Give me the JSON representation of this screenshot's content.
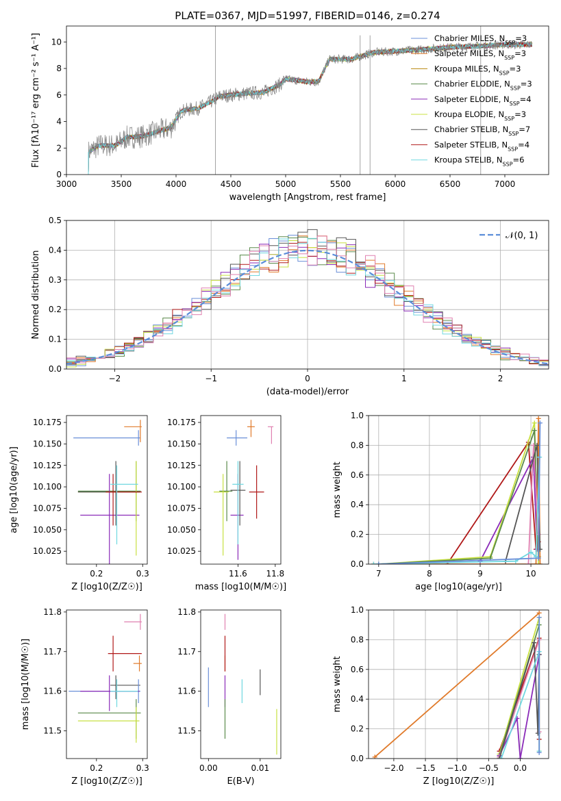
{
  "figure_title": "PLATE=0367, MJD=51997, FIBERID=0146, z=0.274",
  "colors": {
    "chabrier_miles": "#6a8fd8",
    "salpeter_miles": "#e07a2a",
    "kroupa_miles": "#b8860b",
    "chabrier_elodie": "#5a8a4a",
    "salpeter_elodie": "#8a2ab8",
    "kroupa_elodie": "#c8e040",
    "chabrier_stelib": "#555555",
    "salpeter_stelib": "#b01818",
    "kroupa_stelib": "#70d8e0",
    "pink": "#e080b0",
    "normal_curve": "#5b8dd9"
  },
  "chart_data": [
    {
      "id": "spectrum",
      "type": "line",
      "xlabel": "wavelength [Angstrom, rest frame]",
      "ylabel": "Flux [fλ10⁻¹⁷ erg cm⁻² s⁻¹ A⁻¹]",
      "xlim": [
        3000,
        7400
      ],
      "ylim": [
        0,
        11.2
      ],
      "xticks": [
        3000,
        3500,
        4000,
        4500,
        5000,
        5500,
        6000,
        6500,
        7000
      ],
      "yticks": [
        0,
        2,
        4,
        6,
        8,
        10
      ],
      "continuum": [
        [
          3200,
          1.7
        ],
        [
          3300,
          2.2
        ],
        [
          3450,
          2.2
        ],
        [
          3550,
          2.8
        ],
        [
          3700,
          2.9
        ],
        [
          3850,
          3.3
        ],
        [
          3950,
          3.5
        ],
        [
          4050,
          4.8
        ],
        [
          4200,
          5.0
        ],
        [
          4300,
          5.4
        ],
        [
          4400,
          5.9
        ],
        [
          4600,
          6.1
        ],
        [
          4800,
          6.2
        ],
        [
          4950,
          6.8
        ],
        [
          5000,
          7.2
        ],
        [
          5200,
          7.0
        ],
        [
          5300,
          7.0
        ],
        [
          5400,
          8.7
        ],
        [
          5600,
          8.7
        ],
        [
          5800,
          9.2
        ],
        [
          6000,
          9.3
        ],
        [
          6200,
          9.4
        ],
        [
          6500,
          9.6
        ],
        [
          6800,
          9.7
        ],
        [
          7000,
          9.8
        ],
        [
          7200,
          9.8
        ]
      ],
      "legend": [
        {
          "label": "Chabrier MILES, N_SSP=3",
          "color_key": "chabrier_miles"
        },
        {
          "label": "Salpeter MILES, N_SSP=3",
          "color_key": "salpeter_miles"
        },
        {
          "label": "Kroupa MILES, N_SSP=3",
          "color_key": "kroupa_miles"
        },
        {
          "label": "Chabrier ELODIE, N_SSP=3",
          "color_key": "chabrier_elodie"
        },
        {
          "label": "Salpeter ELODIE, N_SSP=4",
          "color_key": "salpeter_elodie"
        },
        {
          "label": "Kroupa ELODIE, N_SSP=3",
          "color_key": "kroupa_elodie"
        },
        {
          "label": "Chabrier STELIB, N_SSP=7",
          "color_key": "chabrier_stelib"
        },
        {
          "label": "Salpeter STELIB, N_SSP=4",
          "color_key": "salpeter_stelib"
        },
        {
          "label": "Kroupa STELIB, N_SSP=6",
          "color_key": "kroupa_stelib"
        }
      ],
      "legend_position": "right"
    },
    {
      "id": "residuals",
      "type": "histogram",
      "xlabel": "(data-model)/error",
      "ylabel": "Normed distribution",
      "xlim": [
        -2.5,
        2.5
      ],
      "ylim": [
        0,
        0.5
      ],
      "xticks": [
        -2,
        -1,
        0,
        1,
        2
      ],
      "yticks": [
        0.0,
        0.1,
        0.2,
        0.3,
        0.4,
        0.5
      ],
      "legend": [
        {
          "label": "𝒩(0, 1)",
          "color_key": "normal_curve"
        }
      ],
      "legend_position": "top-right",
      "grid": true
    },
    {
      "id": "age_vs_Z",
      "type": "errorbar",
      "xlabel": "Z [log10(Z/Z☉)]",
      "ylabel": "age  [log10(age/yr)]",
      "xlim": [
        0.135,
        0.31
      ],
      "ylim": [
        10.01,
        10.183
      ],
      "xticks": [
        0.2,
        0.3
      ],
      "yticks": [
        10.025,
        10.05,
        10.075,
        10.1,
        10.125,
        10.15,
        10.175
      ],
      "points": [
        {
          "c": "chabrier_miles",
          "x": 0.291,
          "y": 10.157,
          "xl": 0.15,
          "xh": 0.295,
          "yl": 10.148,
          "yh": 10.166
        },
        {
          "c": "salpeter_miles",
          "x": 0.295,
          "y": 10.17,
          "xl": 0.26,
          "xh": 0.298,
          "yl": 10.152,
          "yh": 10.178
        },
        {
          "c": "chabrier_elodie",
          "x": 0.286,
          "y": 10.095,
          "xl": 0.16,
          "xh": 0.296,
          "yl": 10.06,
          "yh": 10.13
        },
        {
          "c": "salpeter_elodie",
          "x": 0.228,
          "y": 10.067,
          "xl": 0.165,
          "xh": 0.293,
          "yl": 10.01,
          "yh": 10.115
        },
        {
          "c": "kroupa_elodie",
          "x": 0.286,
          "y": 10.094,
          "xl": 0.16,
          "xh": 0.293,
          "yl": 10.02,
          "yh": 10.13
        },
        {
          "c": "chabrier_stelib",
          "x": 0.242,
          "y": 10.094,
          "xl": 0.16,
          "xh": 0.295,
          "yl": 10.055,
          "yh": 10.13
        },
        {
          "c": "salpeter_stelib",
          "x": 0.236,
          "y": 10.094,
          "xl": 0.22,
          "xh": 0.298,
          "yl": 10.055,
          "yh": 10.115
        },
        {
          "c": "kroupa_stelib",
          "x": 0.244,
          "y": 10.103,
          "xl": 0.23,
          "xh": 0.29,
          "yl": 10.033,
          "yh": 10.125
        }
      ]
    },
    {
      "id": "age_vs_mass",
      "type": "errorbar",
      "xlabel": "mass [log10(M/M☉)]",
      "ylabel": "",
      "xlim": [
        11.4,
        11.83
      ],
      "ylim": [
        10.01,
        10.183
      ],
      "xticks": [
        11.6,
        11.8
      ],
      "yticks": [
        10.025,
        10.05,
        10.075,
        10.1,
        10.125,
        10.15,
        10.175
      ],
      "points": [
        {
          "c": "chabrier_miles",
          "x": 11.59,
          "y": 10.157,
          "xl": 11.54,
          "xh": 11.65,
          "yl": 10.148,
          "yh": 10.166
        },
        {
          "c": "salpeter_miles",
          "x": 11.67,
          "y": 10.17,
          "xl": 11.65,
          "xh": 11.69,
          "yl": 10.158,
          "yh": 10.178
        },
        {
          "c": "pink",
          "x": 11.78,
          "y": 10.17,
          "xl": 11.76,
          "xh": 11.79,
          "yl": 10.15,
          "yh": 10.17
        },
        {
          "c": "chabrier_elodie",
          "x": 11.54,
          "y": 10.095,
          "xl": 11.5,
          "xh": 11.57,
          "yl": 10.06,
          "yh": 10.13
        },
        {
          "c": "salpeter_elodie",
          "x": 11.6,
          "y": 10.067,
          "xl": 11.56,
          "xh": 11.63,
          "yl": 10.015,
          "yh": 10.115
        },
        {
          "c": "kroupa_elodie",
          "x": 11.52,
          "y": 10.094,
          "xl": 11.47,
          "xh": 11.55,
          "yl": 10.02,
          "yh": 10.115
        },
        {
          "c": "chabrier_stelib",
          "x": 11.61,
          "y": 10.096,
          "xl": 11.56,
          "xh": 11.64,
          "yl": 10.055,
          "yh": 10.13
        },
        {
          "c": "salpeter_stelib",
          "x": 11.7,
          "y": 10.094,
          "xl": 11.66,
          "xh": 11.74,
          "yl": 10.063,
          "yh": 10.125
        },
        {
          "c": "kroupa_stelib",
          "x": 11.6,
          "y": 10.103,
          "xl": 11.57,
          "xh": 11.63,
          "yl": 10.033,
          "yh": 10.13
        }
      ]
    },
    {
      "id": "massweight_vs_age",
      "type": "line",
      "xlabel": "age  [log10(age/yr)]",
      "ylabel": "mass weight",
      "xlim": [
        6.8,
        10.35
      ],
      "ylim": [
        0,
        1.0
      ],
      "xticks": [
        7,
        8,
        9,
        10
      ],
      "yticks": [
        0.0,
        0.2,
        0.4,
        0.6,
        0.8,
        1.0
      ],
      "grid": true,
      "series": [
        {
          "c": "salpeter_stelib",
          "x": [
            8.35,
            9.95,
            10.1,
            10.15
          ],
          "y": [
            0.0,
            0.82,
            0.1,
            0.15
          ]
        },
        {
          "c": "salpeter_elodie",
          "x": [
            9.0,
            10.05,
            10.12
          ],
          "y": [
            0.02,
            0.72,
            0.1
          ]
        },
        {
          "c": "kroupa_elodie",
          "x": [
            7.0,
            9.2,
            10.07,
            10.15
          ],
          "y": [
            0.0,
            0.05,
            0.95,
            0.0
          ]
        },
        {
          "c": "chabrier_elodie",
          "x": [
            7.0,
            9.2,
            10.07,
            10.15
          ],
          "y": [
            0.0,
            0.04,
            0.9,
            0.05
          ]
        },
        {
          "c": "salpeter_miles",
          "x": [
            6.9,
            10.1,
            10.15,
            10.18
          ],
          "y": [
            0.0,
            0.0,
            0.98,
            0.0
          ]
        },
        {
          "c": "pink",
          "x": [
            9.95,
            10.05,
            10.15
          ],
          "y": [
            0.0,
            0.8,
            0.2
          ]
        },
        {
          "c": "chabrier_stelib",
          "x": [
            9.5,
            10.12,
            10.18
          ],
          "y": [
            0.02,
            0.8,
            0.1
          ]
        },
        {
          "c": "kroupa_stelib",
          "x": [
            6.9,
            9.7,
            10.0,
            10.1,
            10.17
          ],
          "y": [
            0.0,
            0.02,
            0.08,
            0.05,
            0.72
          ]
        },
        {
          "c": "chabrier_miles",
          "x": [
            7.0,
            10.15,
            10.18
          ],
          "y": [
            0.0,
            0.04,
            0.95
          ]
        }
      ]
    },
    {
      "id": "mass_vs_Z",
      "type": "errorbar",
      "xlabel": "Z [log10(Z/Z☉)]",
      "ylabel": "mass [log10(M/M☉)]",
      "xlim": [
        0.135,
        0.31
      ],
      "ylim": [
        11.43,
        11.805
      ],
      "xticks": [
        0.2,
        0.3
      ],
      "yticks": [
        11.5,
        11.6,
        11.7,
        11.8
      ],
      "points": [
        {
          "c": "pink",
          "x": 0.295,
          "y": 11.775,
          "xl": 0.26,
          "xh": 0.298,
          "yl": 11.755,
          "yh": 11.795
        },
        {
          "c": "salpeter_miles",
          "x": 0.293,
          "y": 11.67,
          "xl": 0.28,
          "xh": 0.298,
          "yl": 11.65,
          "yh": 11.69
        },
        {
          "c": "salpeter_stelib",
          "x": 0.236,
          "y": 11.695,
          "xl": 0.225,
          "xh": 0.298,
          "yl": 11.65,
          "yh": 11.74
        },
        {
          "c": "chabrier_stelib",
          "x": 0.242,
          "y": 11.615,
          "xl": 0.23,
          "xh": 0.295,
          "yl": 11.58,
          "yh": 11.64
        },
        {
          "c": "chabrier_miles",
          "x": 0.291,
          "y": 11.6,
          "xl": 0.14,
          "xh": 0.295,
          "yl": 11.57,
          "yh": 11.63
        },
        {
          "c": "salpeter_elodie",
          "x": 0.228,
          "y": 11.6,
          "xl": 0.165,
          "xh": 0.293,
          "yl": 11.55,
          "yh": 11.64
        },
        {
          "c": "kroupa_stelib",
          "x": 0.244,
          "y": 11.6,
          "xl": 0.23,
          "xh": 0.29,
          "yl": 11.56,
          "yh": 11.63
        },
        {
          "c": "chabrier_elodie",
          "x": 0.286,
          "y": 11.545,
          "xl": 0.16,
          "xh": 0.296,
          "yl": 11.48,
          "yh": 11.58
        },
        {
          "c": "kroupa_elodie",
          "x": 0.286,
          "y": 11.525,
          "xl": 0.16,
          "xh": 0.293,
          "yl": 11.47,
          "yh": 11.56
        }
      ]
    },
    {
      "id": "mass_vs_ebv",
      "type": "errorbar",
      "xlabel": "E(B-V)",
      "ylabel": "",
      "xlim": [
        -0.0015,
        0.014
      ],
      "ylim": [
        11.43,
        11.805
      ],
      "xticks": [
        0.0,
        0.01
      ],
      "yticks": [
        11.5,
        11.6,
        11.7,
        11.8
      ],
      "points": [
        {
          "c": "chabrier_miles",
          "x": 0.0,
          "y": 11.6,
          "yl": 11.56,
          "yh": 11.66
        },
        {
          "c": "salpeter_miles",
          "x": 0.0032,
          "y": 11.67,
          "yl": 11.65,
          "yh": 11.69
        },
        {
          "c": "pink",
          "x": 0.0032,
          "y": 11.775,
          "yl": 11.755,
          "yh": 11.795
        },
        {
          "c": "salpeter_stelib",
          "x": 0.0032,
          "y": 11.695,
          "yl": 11.65,
          "yh": 11.74
        },
        {
          "c": "salpeter_elodie",
          "x": 0.0032,
          "y": 11.6,
          "yl": 11.56,
          "yh": 11.64
        },
        {
          "c": "chabrier_elodie",
          "x": 0.0032,
          "y": 11.54,
          "yl": 11.48,
          "yh": 11.58
        },
        {
          "c": "kroupa_stelib",
          "x": 0.0065,
          "y": 11.6,
          "yl": 11.57,
          "yh": 11.63
        },
        {
          "c": "chabrier_stelib",
          "x": 0.01,
          "y": 11.615,
          "yl": 11.59,
          "yh": 11.655
        },
        {
          "c": "kroupa_elodie",
          "x": 0.0132,
          "y": 11.5,
          "yl": 11.44,
          "yh": 11.555
        }
      ]
    },
    {
      "id": "massweight_vs_Z",
      "type": "line",
      "xlabel": "Z [log10(Z/Z☉)]",
      "ylabel": "mass weight",
      "xlim": [
        -2.4,
        0.45
      ],
      "ylim": [
        0,
        1.0
      ],
      "xticks": [
        -2.0,
        -1.5,
        -1.0,
        -0.5,
        0.0
      ],
      "yticks": [
        0.0,
        0.2,
        0.4,
        0.6,
        0.8,
        1.0
      ],
      "grid": true,
      "series": [
        {
          "c": "salpeter_miles",
          "x": [
            -2.3,
            0.3
          ],
          "y": [
            0.01,
            0.98
          ]
        },
        {
          "c": "salpeter_stelib",
          "x": [
            -0.33,
            0.3,
            0.3
          ],
          "y": [
            0.05,
            0.81,
            0.13
          ]
        },
        {
          "c": "kroupa_elodie",
          "x": [
            -0.33,
            0.3,
            0.3
          ],
          "y": [
            0.03,
            0.95,
            0.05
          ]
        },
        {
          "c": "chabrier_elodie",
          "x": [
            -0.33,
            0.3
          ],
          "y": [
            0.02,
            0.9
          ]
        },
        {
          "c": "salpeter_elodie",
          "x": [
            -0.33,
            -0.05,
            0.0,
            0.3
          ],
          "y": [
            0.02,
            0.27,
            0.0,
            0.7
          ]
        },
        {
          "c": "pink",
          "x": [
            -0.33,
            0.3,
            0.3
          ],
          "y": [
            0.01,
            0.8,
            0.18
          ]
        },
        {
          "c": "chabrier_stelib",
          "x": [
            -0.33,
            0.22,
            0.28,
            0.3
          ],
          "y": [
            0.0,
            0.78,
            0.17,
            0.7
          ]
        },
        {
          "c": "kroupa_stelib",
          "x": [
            -0.3,
            0.3,
            0.3
          ],
          "y": [
            0.0,
            0.72,
            0.05
          ]
        },
        {
          "c": "chabrier_miles",
          "x": [
            0.3,
            0.3
          ],
          "y": [
            0.04,
            0.95
          ]
        }
      ]
    }
  ]
}
